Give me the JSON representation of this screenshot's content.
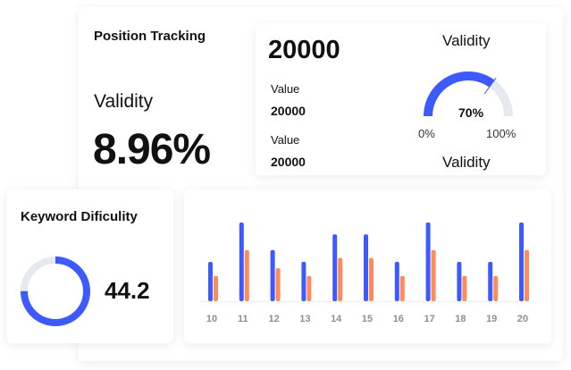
{
  "position_tracking": {
    "title": "Position Tracking",
    "validity_label": "Validity",
    "validity_value": "8.96%"
  },
  "validity_card": {
    "big_value": "20000",
    "rows": [
      {
        "label": "Value",
        "value": "20000"
      },
      {
        "label": "Value",
        "value": "20000"
      }
    ],
    "gauge": {
      "title": "Validity",
      "bottom_label": "Validity",
      "percent_label": "70%",
      "percent": 70,
      "min_label": "0%",
      "max_label": "100%"
    }
  },
  "keyword": {
    "title": "Keyword Dificulity",
    "value": "44.2",
    "ring_fraction": 0.75
  },
  "colors": {
    "primary": "#3d5afe",
    "secondary": "#ff8a5c",
    "track": "#e6e9ef"
  },
  "chart_data": {
    "type": "bar",
    "categories": [
      "10",
      "11",
      "12",
      "13",
      "14",
      "15",
      "16",
      "17",
      "18",
      "19",
      "20"
    ],
    "series": [
      {
        "values": [
          5,
          10,
          6.5,
          5,
          8.5,
          8.5,
          5,
          10,
          5,
          5,
          10
        ]
      },
      {
        "values": [
          3.2,
          6.5,
          4.2,
          3.2,
          5.5,
          5.5,
          3.2,
          6.5,
          3.2,
          3.2,
          6.5
        ]
      }
    ],
    "ylim": [
      0,
      10
    ],
    "grid": false,
    "legend": "none"
  }
}
